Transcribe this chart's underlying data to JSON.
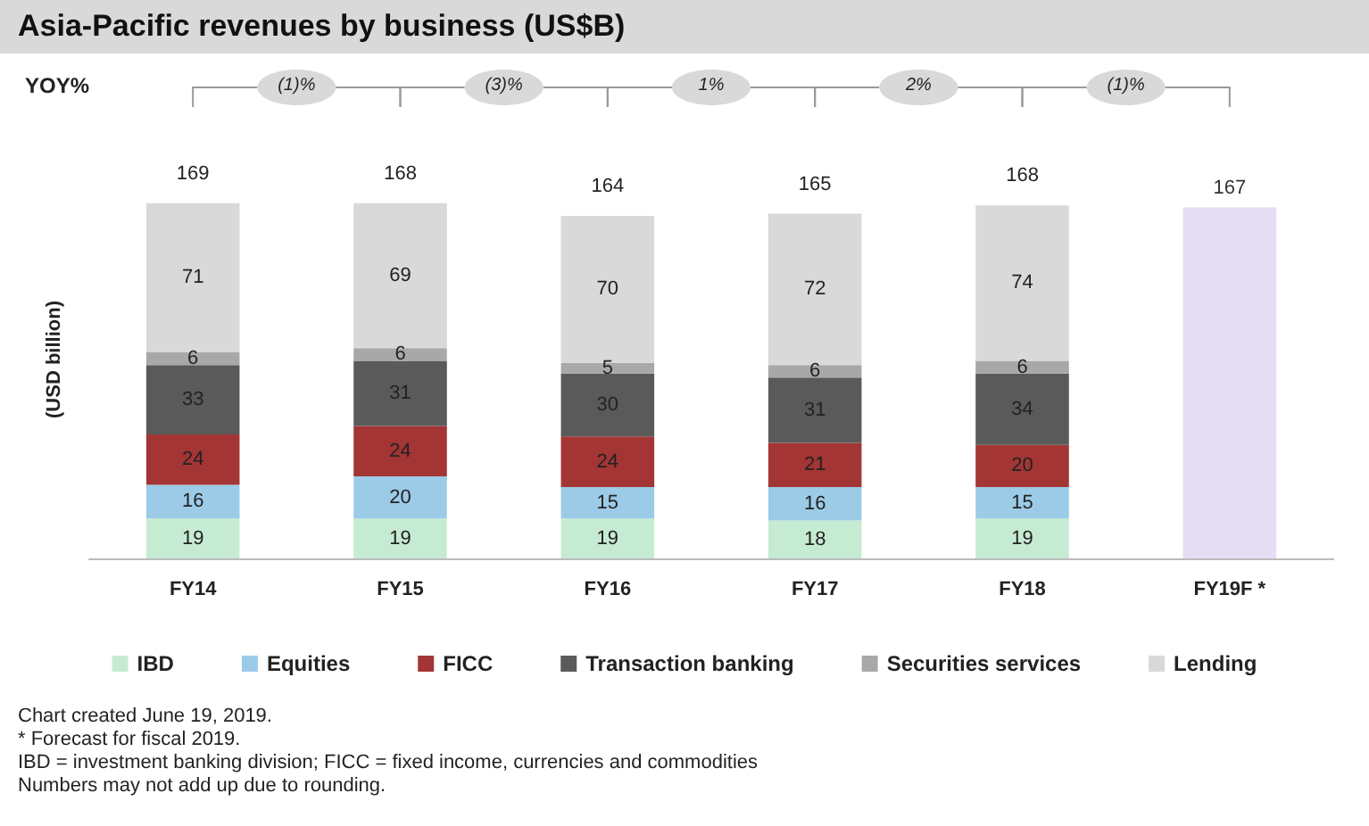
{
  "chart_data": {
    "type": "bar",
    "title": "Asia-Pacific revenues by business (US$B)",
    "ylabel": "(USD billion)",
    "stacked": true,
    "data_labels": true,
    "legend": "bottom",
    "grid": false,
    "categories": [
      "FY14",
      "FY15",
      "FY16",
      "FY17",
      "FY18",
      "FY19F *"
    ],
    "series": [
      {
        "name": "IBD",
        "color": "#c6ebd3",
        "values": [
          19,
          19,
          19,
          18,
          19,
          null
        ]
      },
      {
        "name": "Equities",
        "color": "#9ccbe8",
        "values": [
          16,
          20,
          15,
          16,
          15,
          null
        ]
      },
      {
        "name": "FICC",
        "color": "#a33535",
        "values": [
          24,
          24,
          24,
          21,
          20,
          null
        ]
      },
      {
        "name": "Transaction banking",
        "color": "#5a5a5a",
        "values": [
          33,
          31,
          30,
          31,
          34,
          null
        ]
      },
      {
        "name": "Securities services",
        "color": "#a8a8a8",
        "values": [
          6,
          6,
          5,
          6,
          6,
          null
        ]
      },
      {
        "name": "Lending",
        "color": "#d9d9d9",
        "values": [
          71,
          69,
          70,
          72,
          74,
          null
        ]
      },
      {
        "color": "#e4ddf4",
        "values": [
          null,
          null,
          null,
          null,
          null,
          167
        ]
      }
    ],
    "totals": [
      "169",
      "168",
      "164",
      "165",
      "168",
      null
    ],
    "annotations": [
      "YOY%",
      "(1)%",
      "(3)%",
      "1%",
      "2%",
      "(1)%",
      "Chart created June 19, 2019.",
      "* Forecast for fiscal 2019.",
      "IBD = investment banking division; FICC = fixed income, currencies and commodities",
      "Numbers may not add up due to rounding."
    ]
  }
}
